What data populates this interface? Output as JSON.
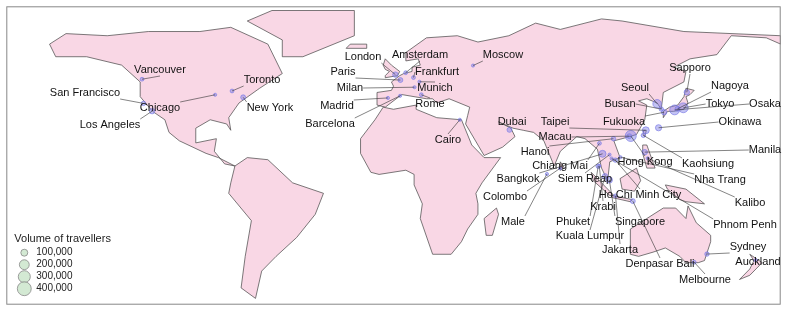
{
  "chart_data": {
    "type": "bubble",
    "color": "#7b7be6",
    "xlim": [
      -189,
      187
    ],
    "ylim": [
      -58,
      84
    ],
    "tick_labels": false,
    "grid": false,
    "legend": "bottom left",
    "size_legend": {
      "title": "Volume of travellers",
      "values": [
        {
          "value": 100000,
          "label": "100,000"
        },
        {
          "value": 200000,
          "label": "200,000"
        },
        {
          "value": 300000,
          "label": "300,000"
        },
        {
          "value": 400000,
          "label": "400,000"
        }
      ]
    },
    "points": [
      {
        "name": "Vancouver",
        "lon": -123.1,
        "lat": 49.3,
        "volume": 30000
      },
      {
        "name": "San Francisco",
        "lon": -122.4,
        "lat": 37.8,
        "volume": 40000
      },
      {
        "name": "Los Angeles",
        "lon": -118.2,
        "lat": 34.1,
        "volume": 60000
      },
      {
        "name": "Chicago",
        "lon": -87.6,
        "lat": 41.9,
        "volume": 20000
      },
      {
        "name": "Toronto",
        "lon": -79.4,
        "lat": 43.7,
        "volume": 30000
      },
      {
        "name": "New York",
        "lon": -74.0,
        "lat": 40.7,
        "volume": 50000
      },
      {
        "name": "London",
        "lon": -0.1,
        "lat": 51.5,
        "volume": 60000
      },
      {
        "name": "Amsterdam",
        "lon": 4.9,
        "lat": 52.4,
        "volume": 30000
      },
      {
        "name": "Paris",
        "lon": 2.35,
        "lat": 48.9,
        "volume": 50000
      },
      {
        "name": "Frankfurt",
        "lon": 8.7,
        "lat": 50.1,
        "volume": 30000
      },
      {
        "name": "Milan",
        "lon": 9.2,
        "lat": 45.5,
        "volume": 20000
      },
      {
        "name": "Munich",
        "lon": 11.6,
        "lat": 48.1,
        "volume": 20000
      },
      {
        "name": "Madrid",
        "lon": -3.7,
        "lat": 40.4,
        "volume": 20000
      },
      {
        "name": "Barcelona",
        "lon": 2.2,
        "lat": 41.4,
        "volume": 20000
      },
      {
        "name": "Rome",
        "lon": 12.5,
        "lat": 41.9,
        "volume": 30000
      },
      {
        "name": "Moscow",
        "lon": 37.6,
        "lat": 55.8,
        "volume": 20000
      },
      {
        "name": "Cairo",
        "lon": 31.2,
        "lat": 30.0,
        "volume": 20000
      },
      {
        "name": "Dubai",
        "lon": 55.3,
        "lat": 25.2,
        "volume": 50000
      },
      {
        "name": "Colombo",
        "lon": 79.9,
        "lat": 6.9,
        "volume": 20000
      },
      {
        "name": "Male",
        "lon": 73.5,
        "lat": 4.2,
        "volume": 20000
      },
      {
        "name": "Hanoi",
        "lon": 105.8,
        "lat": 21.0,
        "volume": 40000
      },
      {
        "name": "Chiang Mai",
        "lon": 99.0,
        "lat": 18.8,
        "volume": 30000
      },
      {
        "name": "Bangkok",
        "lon": 100.5,
        "lat": 13.8,
        "volume": 100000
      },
      {
        "name": "Siem Reap",
        "lon": 103.9,
        "lat": 13.4,
        "volume": 20000
      },
      {
        "name": "Phuket",
        "lon": 98.4,
        "lat": 7.9,
        "volume": 40000
      },
      {
        "name": "Krabi",
        "lon": 98.9,
        "lat": 8.1,
        "volume": 20000
      },
      {
        "name": "Kuala Lumpur",
        "lon": 101.7,
        "lat": 3.1,
        "volume": 60000
      },
      {
        "name": "Singapore",
        "lon": 103.8,
        "lat": 1.35,
        "volume": 80000
      },
      {
        "name": "Jakarta",
        "lon": 106.8,
        "lat": -6.2,
        "volume": 30000
      },
      {
        "name": "Denpasar Bali",
        "lon": 115.2,
        "lat": -8.7,
        "volume": 50000
      },
      {
        "name": "Ho Chi Minh City",
        "lon": 106.7,
        "lat": 10.8,
        "volume": 40000
      },
      {
        "name": "Phnom Penh",
        "lon": 104.9,
        "lat": 11.6,
        "volume": 20000
      },
      {
        "name": "Nha Trang",
        "lon": 109.2,
        "lat": 12.2,
        "volume": 20000
      },
      {
        "name": "Kalibo",
        "lon": 122.4,
        "lat": 11.7,
        "volume": 20000
      },
      {
        "name": "Manila",
        "lon": 121.0,
        "lat": 14.6,
        "volume": 60000
      },
      {
        "name": "Hong Kong",
        "lon": 114.2,
        "lat": 22.3,
        "volume": 250000
      },
      {
        "name": "Macau",
        "lon": 113.5,
        "lat": 22.2,
        "volume": 50000
      },
      {
        "name": "Kaohsiung",
        "lon": 120.3,
        "lat": 22.6,
        "volume": 40000
      },
      {
        "name": "Taipei",
        "lon": 121.5,
        "lat": 25.0,
        "volume": 100000
      },
      {
        "name": "Okinawa",
        "lon": 127.7,
        "lat": 26.2,
        "volume": 80000
      },
      {
        "name": "Fukuoka",
        "lon": 130.4,
        "lat": 33.6,
        "volume": 60000
      },
      {
        "name": "Busan",
        "lon": 129.0,
        "lat": 35.1,
        "volume": 40000
      },
      {
        "name": "Seoul",
        "lon": 127.0,
        "lat": 37.6,
        "volume": 150000
      },
      {
        "name": "Sapporo",
        "lon": 141.4,
        "lat": 43.1,
        "volume": 60000
      },
      {
        "name": "Nagoya",
        "lon": 136.9,
        "lat": 35.2,
        "volume": 50000
      },
      {
        "name": "Tokyo",
        "lon": 139.7,
        "lat": 35.7,
        "volume": 200000
      },
      {
        "name": "Osaka",
        "lon": 135.5,
        "lat": 34.7,
        "volume": 200000
      },
      {
        "name": "Sydney",
        "lon": 151.2,
        "lat": -33.9,
        "volume": 40000
      },
      {
        "name": "Melbourne",
        "lon": 145.0,
        "lat": -37.8,
        "volume": 30000
      },
      {
        "name": "Auckland",
        "lon": 174.8,
        "lat": -36.8,
        "volume": 20000
      }
    ]
  }
}
